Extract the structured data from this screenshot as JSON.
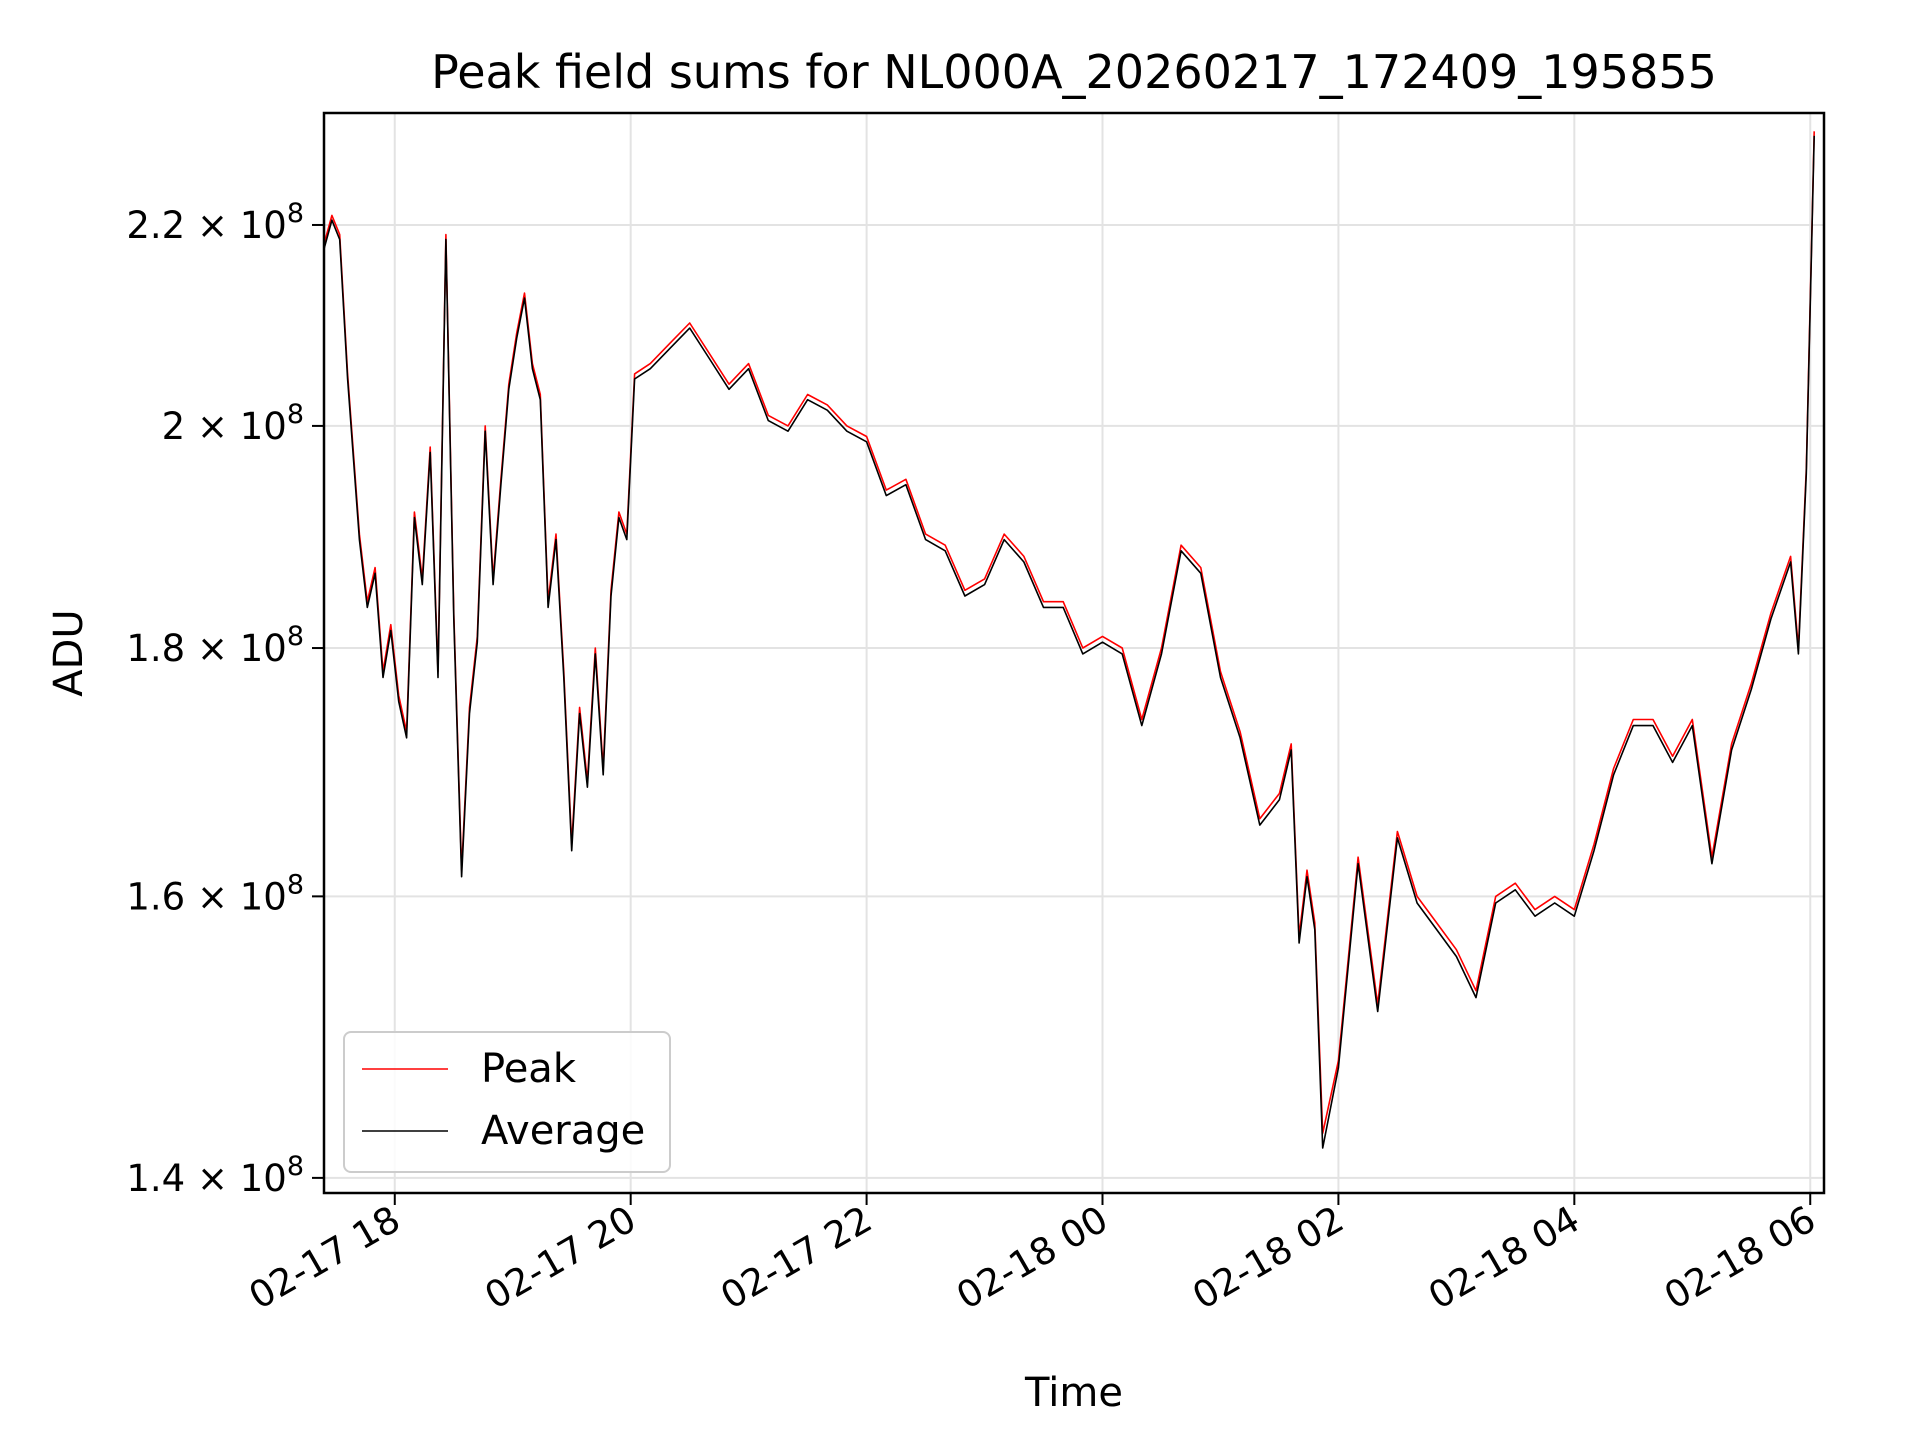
{
  "chart_data": {
    "type": "line",
    "title": "Peak field sums for NL000A_20260217_172409_195855",
    "xlabel": "Time",
    "ylabel": "ADU",
    "yscale": "log",
    "ylim": [
      139000000,
      232000000
    ],
    "xlim": [
      "2026-02-17 17:24",
      "2026-02-18 06:07"
    ],
    "grid": true,
    "legend_placement": "lower-left",
    "x_ticks": [
      {
        "value": "2026-02-17 18:00",
        "label": "02-17 18"
      },
      {
        "value": "2026-02-17 20:00",
        "label": "02-17 20"
      },
      {
        "value": "2026-02-17 22:00",
        "label": "02-17 22"
      },
      {
        "value": "2026-02-18 00:00",
        "label": "02-18 00"
      },
      {
        "value": "2026-02-18 02:00",
        "label": "02-18 02"
      },
      {
        "value": "2026-02-18 04:00",
        "label": "02-18 04"
      },
      {
        "value": "2026-02-18 06:00",
        "label": "02-18 06"
      }
    ],
    "y_ticks": [
      {
        "value": 140000000,
        "label": "1.4 × 10⁸"
      },
      {
        "value": 160000000,
        "label": "1.6 × 10⁸"
      },
      {
        "value": 180000000,
        "label": "1.8 × 10⁸"
      },
      {
        "value": 200000000,
        "label": "2 × 10⁸"
      },
      {
        "value": 220000000,
        "label": "2.2 × 10⁸"
      }
    ],
    "series": [
      {
        "name": "Peak",
        "color": "#ff0000",
        "x": [
          "2026-02-17 17:24",
          "2026-02-17 17:28",
          "2026-02-17 17:32",
          "2026-02-17 17:36",
          "2026-02-17 17:42",
          "2026-02-17 17:46",
          "2026-02-17 17:50",
          "2026-02-17 17:54",
          "2026-02-17 17:58",
          "2026-02-17 18:02",
          "2026-02-17 18:06",
          "2026-02-17 18:10",
          "2026-02-17 18:14",
          "2026-02-17 18:18",
          "2026-02-17 18:22",
          "2026-02-17 18:26",
          "2026-02-17 18:30",
          "2026-02-17 18:34",
          "2026-02-17 18:38",
          "2026-02-17 18:42",
          "2026-02-17 18:46",
          "2026-02-17 18:50",
          "2026-02-17 18:54",
          "2026-02-17 18:58",
          "2026-02-17 19:02",
          "2026-02-17 19:06",
          "2026-02-17 19:10",
          "2026-02-17 19:14",
          "2026-02-17 19:18",
          "2026-02-17 19:22",
          "2026-02-17 19:26",
          "2026-02-17 19:30",
          "2026-02-17 19:34",
          "2026-02-17 19:38",
          "2026-02-17 19:42",
          "2026-02-17 19:46",
          "2026-02-17 19:50",
          "2026-02-17 19:54",
          "2026-02-17 19:58",
          "2026-02-17 20:02",
          "2026-02-17 20:10",
          "2026-02-17 20:20",
          "2026-02-17 20:30",
          "2026-02-17 20:40",
          "2026-02-17 20:50",
          "2026-02-17 21:00",
          "2026-02-17 21:10",
          "2026-02-17 21:20",
          "2026-02-17 21:30",
          "2026-02-17 21:40",
          "2026-02-17 21:50",
          "2026-02-17 22:00",
          "2026-02-17 22:10",
          "2026-02-17 22:20",
          "2026-02-17 22:30",
          "2026-02-17 22:40",
          "2026-02-17 22:50",
          "2026-02-17 23:00",
          "2026-02-17 23:10",
          "2026-02-17 23:20",
          "2026-02-17 23:30",
          "2026-02-17 23:40",
          "2026-02-17 23:50",
          "2026-02-18 00:00",
          "2026-02-18 00:10",
          "2026-02-18 00:20",
          "2026-02-18 00:30",
          "2026-02-18 00:40",
          "2026-02-18 00:50",
          "2026-02-18 01:00",
          "2026-02-18 01:10",
          "2026-02-18 01:20",
          "2026-02-18 01:30",
          "2026-02-18 01:36",
          "2026-02-18 01:40",
          "2026-02-18 01:44",
          "2026-02-18 01:48",
          "2026-02-18 01:52",
          "2026-02-18 02:00",
          "2026-02-18 02:10",
          "2026-02-18 02:20",
          "2026-02-18 02:30",
          "2026-02-18 02:40",
          "2026-02-18 02:50",
          "2026-02-18 03:00",
          "2026-02-18 03:10",
          "2026-02-18 03:20",
          "2026-02-18 03:30",
          "2026-02-18 03:40",
          "2026-02-18 03:50",
          "2026-02-18 04:00",
          "2026-02-18 04:10",
          "2026-02-18 04:20",
          "2026-02-18 04:30",
          "2026-02-18 04:40",
          "2026-02-18 04:50",
          "2026-02-18 05:00",
          "2026-02-18 05:10",
          "2026-02-18 05:20",
          "2026-02-18 05:30",
          "2026-02-18 05:40",
          "2026-02-18 05:50",
          "2026-02-18 05:54",
          "2026-02-18 05:58",
          "2026-02-18 06:02"
        ],
        "values": [
          218000000,
          221000000,
          219000000,
          205000000,
          190000000,
          184000000,
          187000000,
          178000000,
          182000000,
          176000000,
          173000000,
          192000000,
          186000000,
          198000000,
          178000000,
          219000000,
          183000000,
          162000000,
          175000000,
          181000000,
          200000000,
          186000000,
          195000000,
          204000000,
          209000000,
          213000000,
          206000000,
          203000000,
          184000000,
          190000000,
          178000000,
          164000000,
          175000000,
          169000000,
          180000000,
          170000000,
          185000000,
          192000000,
          190000000,
          205000000,
          206000000,
          208000000,
          210000000,
          207000000,
          204000000,
          206000000,
          201000000,
          200000000,
          203000000,
          202000000,
          200000000,
          199000000,
          194000000,
          195000000,
          190000000,
          189000000,
          185000000,
          186000000,
          190000000,
          188000000,
          184000000,
          184000000,
          180000000,
          181000000,
          180000000,
          174000000,
          180000000,
          189000000,
          187000000,
          178000000,
          173000000,
          166000000,
          168000000,
          172000000,
          157000000,
          162000000,
          158000000,
          143000000,
          148000000,
          163000000,
          152000000,
          165000000,
          160000000,
          158000000,
          156000000,
          153000000,
          160000000,
          161000000,
          159000000,
          160000000,
          159000000,
          164000000,
          170000000,
          174000000,
          174000000,
          171000000,
          174000000,
          163000000,
          172000000,
          177000000,
          183000000,
          188000000,
          180000000,
          196000000,
          230000000
        ]
      },
      {
        "name": "Average",
        "color": "#000000",
        "x": [
          "2026-02-17 17:24",
          "2026-02-17 17:28",
          "2026-02-17 17:32",
          "2026-02-17 17:36",
          "2026-02-17 17:42",
          "2026-02-17 17:46",
          "2026-02-17 17:50",
          "2026-02-17 17:54",
          "2026-02-17 17:58",
          "2026-02-17 18:02",
          "2026-02-17 18:06",
          "2026-02-17 18:10",
          "2026-02-17 18:14",
          "2026-02-17 18:18",
          "2026-02-17 18:22",
          "2026-02-17 18:26",
          "2026-02-17 18:30",
          "2026-02-17 18:34",
          "2026-02-17 18:38",
          "2026-02-17 18:42",
          "2026-02-17 18:46",
          "2026-02-17 18:50",
          "2026-02-17 18:54",
          "2026-02-17 18:58",
          "2026-02-17 19:02",
          "2026-02-17 19:06",
          "2026-02-17 19:10",
          "2026-02-17 19:14",
          "2026-02-17 19:18",
          "2026-02-17 19:22",
          "2026-02-17 19:26",
          "2026-02-17 19:30",
          "2026-02-17 19:34",
          "2026-02-17 19:38",
          "2026-02-17 19:42",
          "2026-02-17 19:46",
          "2026-02-17 19:50",
          "2026-02-17 19:54",
          "2026-02-17 19:58",
          "2026-02-17 20:02",
          "2026-02-17 20:10",
          "2026-02-17 20:20",
          "2026-02-17 20:30",
          "2026-02-17 20:40",
          "2026-02-17 20:50",
          "2026-02-17 21:00",
          "2026-02-17 21:10",
          "2026-02-17 21:20",
          "2026-02-17 21:30",
          "2026-02-17 21:40",
          "2026-02-17 21:50",
          "2026-02-17 22:00",
          "2026-02-17 22:10",
          "2026-02-17 22:20",
          "2026-02-17 22:30",
          "2026-02-17 22:40",
          "2026-02-17 22:50",
          "2026-02-17 23:00",
          "2026-02-17 23:10",
          "2026-02-17 23:20",
          "2026-02-17 23:30",
          "2026-02-17 23:40",
          "2026-02-17 23:50",
          "2026-02-18 00:00",
          "2026-02-18 00:10",
          "2026-02-18 00:20",
          "2026-02-18 00:30",
          "2026-02-18 00:40",
          "2026-02-18 00:50",
          "2026-02-18 01:00",
          "2026-02-18 01:10",
          "2026-02-18 01:20",
          "2026-02-18 01:30",
          "2026-02-18 01:36",
          "2026-02-18 01:40",
          "2026-02-18 01:44",
          "2026-02-18 01:48",
          "2026-02-18 01:52",
          "2026-02-18 02:00",
          "2026-02-18 02:10",
          "2026-02-18 02:20",
          "2026-02-18 02:30",
          "2026-02-18 02:40",
          "2026-02-18 02:50",
          "2026-02-18 03:00",
          "2026-02-18 03:10",
          "2026-02-18 03:20",
          "2026-02-18 03:30",
          "2026-02-18 03:40",
          "2026-02-18 03:50",
          "2026-02-18 04:00",
          "2026-02-18 04:10",
          "2026-02-18 04:20",
          "2026-02-18 04:30",
          "2026-02-18 04:40",
          "2026-02-18 04:50",
          "2026-02-18 05:00",
          "2026-02-18 05:10",
          "2026-02-18 05:20",
          "2026-02-18 05:30",
          "2026-02-18 05:40",
          "2026-02-18 05:50",
          "2026-02-18 05:54",
          "2026-02-18 05:58",
          "2026-02-18 06:02"
        ],
        "values": [
          217500000,
          220500000,
          218500000,
          204500000,
          189500000,
          183500000,
          186500000,
          177500000,
          181500000,
          175500000,
          172500000,
          191500000,
          185500000,
          197500000,
          177500000,
          218500000,
          182500000,
          161500000,
          174500000,
          180500000,
          199500000,
          185500000,
          194500000,
          203500000,
          208500000,
          212500000,
          205500000,
          202500000,
          183500000,
          189500000,
          177500000,
          163500000,
          174500000,
          168500000,
          179500000,
          169500000,
          184500000,
          191500000,
          189500000,
          204500000,
          205500000,
          207500000,
          209500000,
          206500000,
          203500000,
          205500000,
          200500000,
          199500000,
          202500000,
          201500000,
          199500000,
          198500000,
          193500000,
          194500000,
          189500000,
          188500000,
          184500000,
          185500000,
          189500000,
          187500000,
          183500000,
          183500000,
          179500000,
          180500000,
          179500000,
          173500000,
          179500000,
          188500000,
          186500000,
          177500000,
          172500000,
          165500000,
          167500000,
          171500000,
          156500000,
          161500000,
          157500000,
          142000000,
          147500000,
          162500000,
          151500000,
          164500000,
          159500000,
          157500000,
          155500000,
          152500000,
          159500000,
          160500000,
          158500000,
          159500000,
          158500000,
          163500000,
          169500000,
          173500000,
          173500000,
          170500000,
          173500000,
          162500000,
          171500000,
          176500000,
          182500000,
          187500000,
          179500000,
          195500000,
          229500000
        ]
      }
    ]
  }
}
